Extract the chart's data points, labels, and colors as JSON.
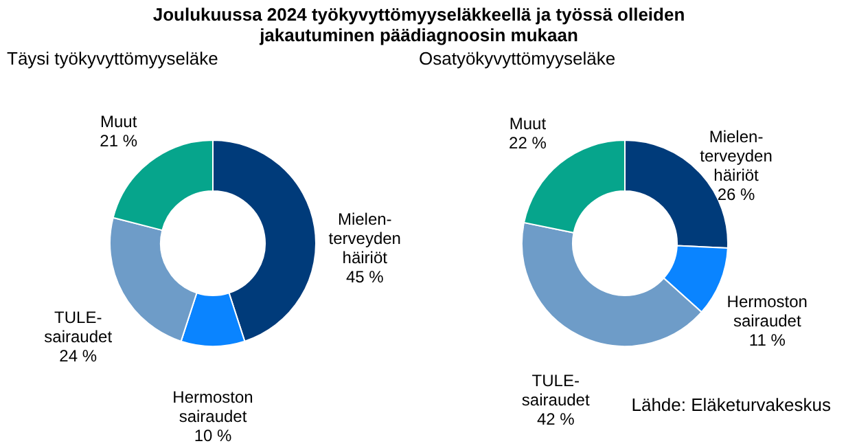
{
  "chart_data": [
    {
      "type": "donut",
      "title": "Joulukuussa 2024 työkyvyttömyyseläkkeellä ja työssä olleiden\njakautuminen päädiagnoosin mukaan",
      "subtitle": "Täysi työkyvyttömyyseläke",
      "categories": [
        "Mielen-\nterveyden\nhäiriöt",
        "Hermoston\nsairaudet",
        "TULE-\nsairaudet",
        "Muut"
      ],
      "values": [
        45,
        10,
        24,
        21
      ],
      "value_labels": [
        "45 %",
        "10 %",
        "24 %",
        "21 %"
      ],
      "colors": [
        "#003b7a",
        "#0a84ff",
        "#6e9cc8",
        "#06a58c"
      ],
      "legend": false
    },
    {
      "type": "donut",
      "subtitle": "Osatyökyvyttömyyseläke",
      "categories": [
        "Mielen-\nterveyden\nhäiriöt",
        "Hermoston\nsairaudet",
        "TULE-\nsairaudet",
        "Muut"
      ],
      "values": [
        26,
        11,
        42,
        22
      ],
      "value_labels": [
        "26 %",
        "11 %",
        "42 %",
        "22 %"
      ],
      "colors": [
        "#003b7a",
        "#0a84ff",
        "#6e9cc8",
        "#06a58c"
      ],
      "legend": false,
      "annotations": [
        "Lähde: Eläketurvakeskus"
      ]
    }
  ]
}
